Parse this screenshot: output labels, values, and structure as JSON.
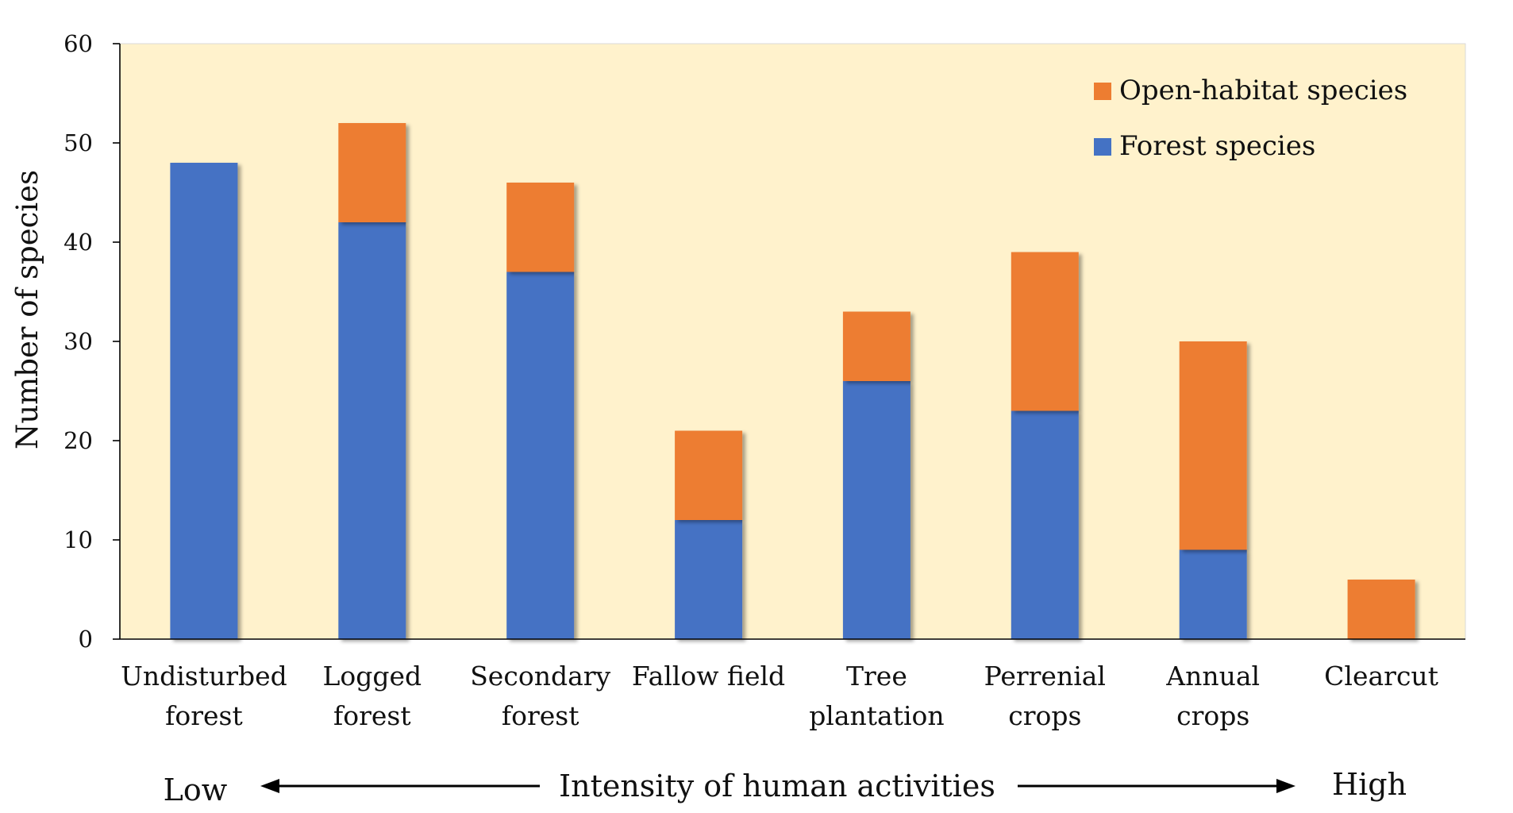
{
  "chart_data": {
    "type": "bar",
    "stacked": true,
    "categories": [
      [
        "Undisturbed",
        "forest"
      ],
      [
        "Logged",
        "forest"
      ],
      [
        "Secondary",
        "forest"
      ],
      [
        "Fallow field"
      ],
      [
        "Tree",
        "plantation"
      ],
      [
        "Perrenial",
        "crops"
      ],
      [
        "Annual",
        "crops"
      ],
      [
        "Clearcut"
      ]
    ],
    "series": [
      {
        "name": "Forest species",
        "color": "#4472C4",
        "values": [
          48,
          42,
          37,
          12,
          26,
          23,
          9,
          0
        ]
      },
      {
        "name": "Open-habitat species",
        "color": "#ED7D31",
        "values": [
          0,
          10,
          9,
          9,
          7,
          16,
          21,
          6
        ]
      }
    ],
    "ylabel": "Number of species",
    "xlabel": "",
    "ylim": [
      0,
      60
    ],
    "yticks": [
      0,
      10,
      20,
      30,
      40,
      50,
      60
    ],
    "grid": false,
    "legend": {
      "placement": "top-right",
      "order": [
        "Open-habitat species",
        "Forest species"
      ]
    },
    "plot_background": "#FFF2CC",
    "annotation": {
      "low": "Low",
      "title": "Intensity of human activities",
      "high": "High"
    }
  }
}
